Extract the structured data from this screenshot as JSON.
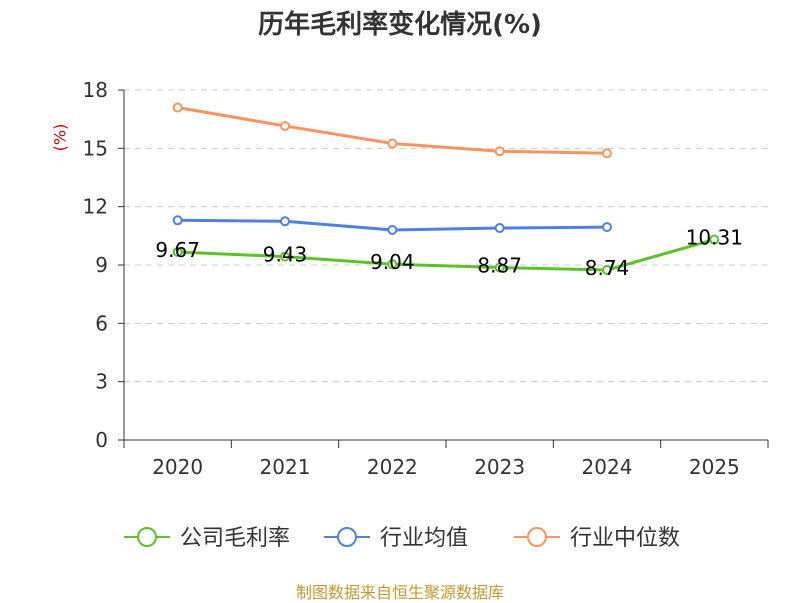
{
  "chart_data": {
    "type": "line",
    "title": "历年毛利率变化情况(%)",
    "ylabel": "(%)",
    "xlabel": "",
    "categories": [
      "2020",
      "2021",
      "2022",
      "2023",
      "2024",
      "2025"
    ],
    "ylim": [
      0,
      18
    ],
    "yticks": [
      0,
      3,
      6,
      9,
      12,
      15,
      18
    ],
    "grid": true,
    "legend_position": "bottom",
    "series": [
      {
        "name": "公司毛利率",
        "color": "#5cc22a",
        "values": [
          9.67,
          9.43,
          9.04,
          8.87,
          8.74,
          10.31
        ],
        "labels": [
          "9.67",
          "9.43",
          "9.04",
          "8.87",
          "8.74",
          "10.31"
        ]
      },
      {
        "name": "行业均值",
        "color": "#4e82dc",
        "values": [
          11.3,
          11.25,
          10.8,
          10.9,
          10.95,
          null
        ]
      },
      {
        "name": "行业中位数",
        "color": "#f79560",
        "values": [
          17.1,
          16.15,
          15.25,
          14.85,
          14.75,
          null
        ]
      }
    ]
  },
  "source": "制图数据来自恒生聚源数据库"
}
